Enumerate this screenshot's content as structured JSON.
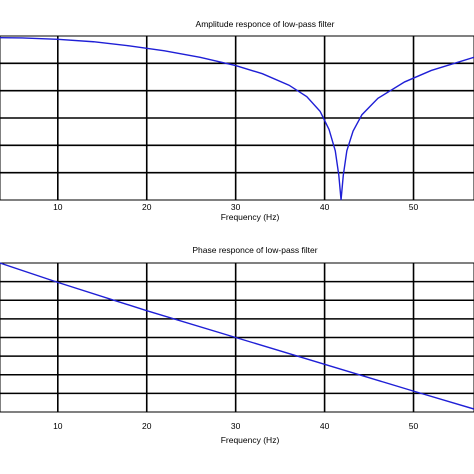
{
  "chart_data": [
    {
      "type": "line",
      "title": "Amplitude responce of low-pass filter",
      "xlabel": "Frequency (Hz)",
      "ylabel": "",
      "xlim": [
        3.5,
        56.8
      ],
      "xticks": [
        10,
        20,
        30,
        40,
        50
      ],
      "ylim": [
        0,
        1
      ],
      "grid": true,
      "series": [
        {
          "x": [
            3.5,
            6,
            10,
            14,
            18,
            22,
            26,
            30,
            33,
            36,
            38,
            39.5,
            40.5,
            41.2,
            41.6,
            41.85,
            42.1,
            42.5,
            43.2,
            44.2,
            46,
            49,
            52,
            56.8
          ],
          "y": [
            0.99,
            0.988,
            0.98,
            0.965,
            0.94,
            0.91,
            0.87,
            0.82,
            0.77,
            0.7,
            0.63,
            0.54,
            0.43,
            0.3,
            0.15,
            0.0,
            0.15,
            0.3,
            0.42,
            0.52,
            0.62,
            0.72,
            0.79,
            0.87
          ],
          "color": "#1f1fd6"
        }
      ]
    },
    {
      "type": "line",
      "title": "Phase responce of low-pass filter",
      "xlabel": "Frequency (Hz)",
      "ylabel": "",
      "xlim": [
        3.5,
        56.8
      ],
      "xticks": [
        10,
        20,
        30,
        40,
        50
      ],
      "ylim": [
        0,
        1
      ],
      "grid": true,
      "series": [
        {
          "x": [
            3.5,
            10,
            20,
            30,
            40,
            50,
            56.8
          ],
          "y": [
            1.0,
            0.87,
            0.68,
            0.5,
            0.32,
            0.14,
            0.02
          ],
          "color": "#1f1fd6"
        }
      ]
    }
  ]
}
